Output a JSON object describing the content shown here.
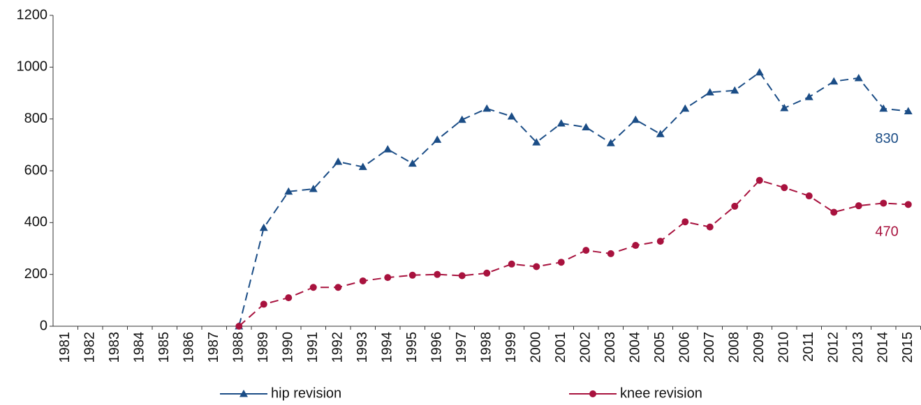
{
  "chart_data": {
    "type": "line",
    "categories": [
      "1981",
      "1982",
      "1983",
      "1984",
      "1985",
      "1986",
      "1987",
      "1988",
      "1989",
      "1990",
      "1991",
      "1992",
      "1993",
      "1994",
      "1995",
      "1996",
      "1997",
      "1998",
      "1999",
      "2000",
      "2001",
      "2002",
      "2003",
      "2004",
      "2005",
      "2006",
      "2007",
      "2008",
      "2009",
      "2010",
      "2011",
      "2012",
      "2013",
      "2014",
      "2015"
    ],
    "series": [
      {
        "name": "hip revision",
        "color": "#1b4d86",
        "marker": "triangle",
        "values": [
          null,
          null,
          null,
          null,
          null,
          null,
          null,
          0,
          380,
          520,
          530,
          635,
          615,
          683,
          628,
          720,
          797,
          840,
          810,
          710,
          783,
          768,
          707,
          797,
          742,
          840,
          903,
          910,
          980,
          842,
          885,
          945,
          958,
          840,
          830
        ]
      },
      {
        "name": "knee revision",
        "color": "#a8123e",
        "marker": "circle",
        "values": [
          null,
          null,
          null,
          null,
          null,
          null,
          null,
          0,
          85,
          110,
          150,
          150,
          175,
          188,
          197,
          200,
          195,
          205,
          240,
          230,
          247,
          293,
          280,
          312,
          328,
          403,
          383,
          463,
          563,
          535,
          503,
          440,
          465,
          475,
          470
        ]
      }
    ],
    "ylim": [
      0,
      1200
    ],
    "yticks": [
      0,
      200,
      400,
      600,
      800,
      1000,
      1200
    ],
    "grid": false,
    "legend": "bottom"
  }
}
